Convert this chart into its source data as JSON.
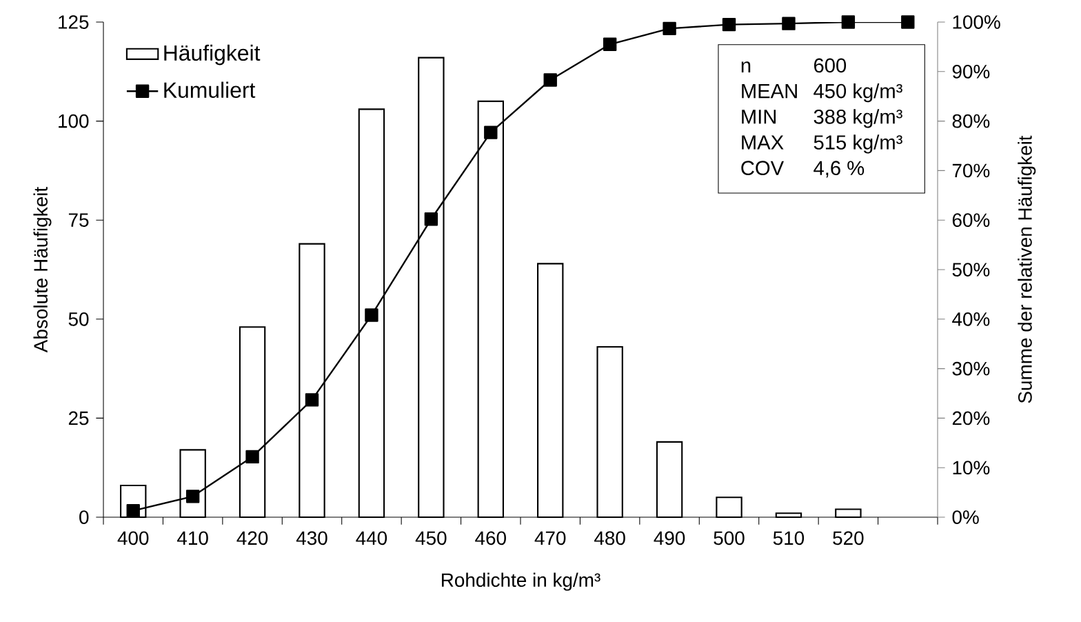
{
  "chart_data": {
    "type": "bar",
    "xlabel": "Rohdichte in kg/m³",
    "ylabel": "Absolute Häufigkeit",
    "y2label": "Summe der relativen Häufigkeit",
    "categories": [
      "400",
      "410",
      "420",
      "430",
      "440",
      "450",
      "460",
      "470",
      "480",
      "490",
      "500",
      "510",
      "520",
      null
    ],
    "series": [
      {
        "name": "Häufigkeit",
        "color": "#000000",
        "values": [
          8,
          17,
          48,
          69,
          103,
          116,
          105,
          64,
          43,
          19,
          5,
          1,
          2,
          null
        ]
      },
      {
        "name": "Kumuliert",
        "type": "line",
        "axis": "y2",
        "color": "#000000",
        "values": [
          1.3,
          4.2,
          12.2,
          23.7,
          40.8,
          60.2,
          77.7,
          88.3,
          95.5,
          98.7,
          99.5,
          99.7,
          100,
          100
        ]
      }
    ],
    "ylim": [
      0,
      125
    ],
    "yticks": [
      0,
      25,
      50,
      75,
      100,
      125
    ],
    "y2lim": [
      0,
      100
    ],
    "y2ticks": [
      {
        "value": 0,
        "label": "0%"
      },
      {
        "value": 10,
        "label": "10%"
      },
      {
        "value": 20,
        "label": "20%"
      },
      {
        "value": 30,
        "label": "30%"
      },
      {
        "value": 40,
        "label": "40%"
      },
      {
        "value": 50,
        "label": "50%"
      },
      {
        "value": 60,
        "label": "60%"
      },
      {
        "value": 70,
        "label": "70%"
      },
      {
        "value": 80,
        "label": "80%"
      },
      {
        "value": 90,
        "label": "90%"
      },
      {
        "value": 100,
        "label": "100%"
      }
    ],
    "annotations": [
      "n",
      "600",
      "MEAN",
      "450 kg/m³",
      "MIN",
      "388 kg/m³",
      "MAX",
      "515 kg/m³",
      "COV",
      "4,6 %"
    ],
    "legend": "top left",
    "marker": "square"
  }
}
